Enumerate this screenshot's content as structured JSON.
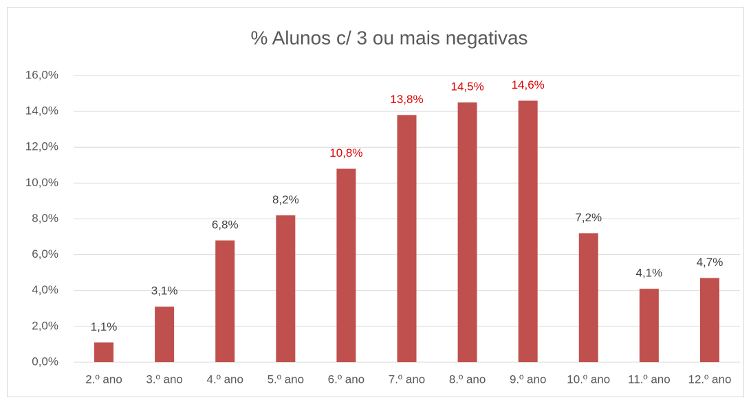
{
  "chart_data": {
    "type": "bar",
    "title": "% Alunos c/ 3 ou mais negativas",
    "categories": [
      "2.º ano",
      "3.º ano",
      "4.º ano",
      "5.º ano",
      "6.º ano",
      "7.º ano",
      "8.º ano",
      "9.º ano",
      "10.º ano",
      "11.º ano",
      "12.º ano"
    ],
    "values": [
      1.1,
      3.1,
      6.8,
      8.2,
      10.8,
      13.8,
      14.5,
      14.6,
      7.2,
      4.1,
      4.7
    ],
    "value_labels": [
      "1,1%",
      "3,1%",
      "6,8%",
      "8,2%",
      "10,8%",
      "13,8%",
      "14,5%",
      "14,6%",
      "7,2%",
      "4,1%",
      "4,7%"
    ],
    "value_label_colors": [
      "#404040",
      "#404040",
      "#404040",
      "#404040",
      "#e00000",
      "#e00000",
      "#e00000",
      "#e00000",
      "#404040",
      "#404040",
      "#404040"
    ],
    "color": "#c0504d",
    "ylim": [
      0,
      16
    ],
    "yticks": [
      {
        "value": 0,
        "label": "0,0%"
      },
      {
        "value": 2,
        "label": "2,0%"
      },
      {
        "value": 4,
        "label": "4,0%"
      },
      {
        "value": 6,
        "label": "6,0%"
      },
      {
        "value": 8,
        "label": "8,0%"
      },
      {
        "value": 10,
        "label": "10,0%"
      },
      {
        "value": 12,
        "label": "12,0%"
      },
      {
        "value": 14,
        "label": "14,0%"
      },
      {
        "value": 16,
        "label": "16,0%"
      }
    ],
    "grid": true
  }
}
